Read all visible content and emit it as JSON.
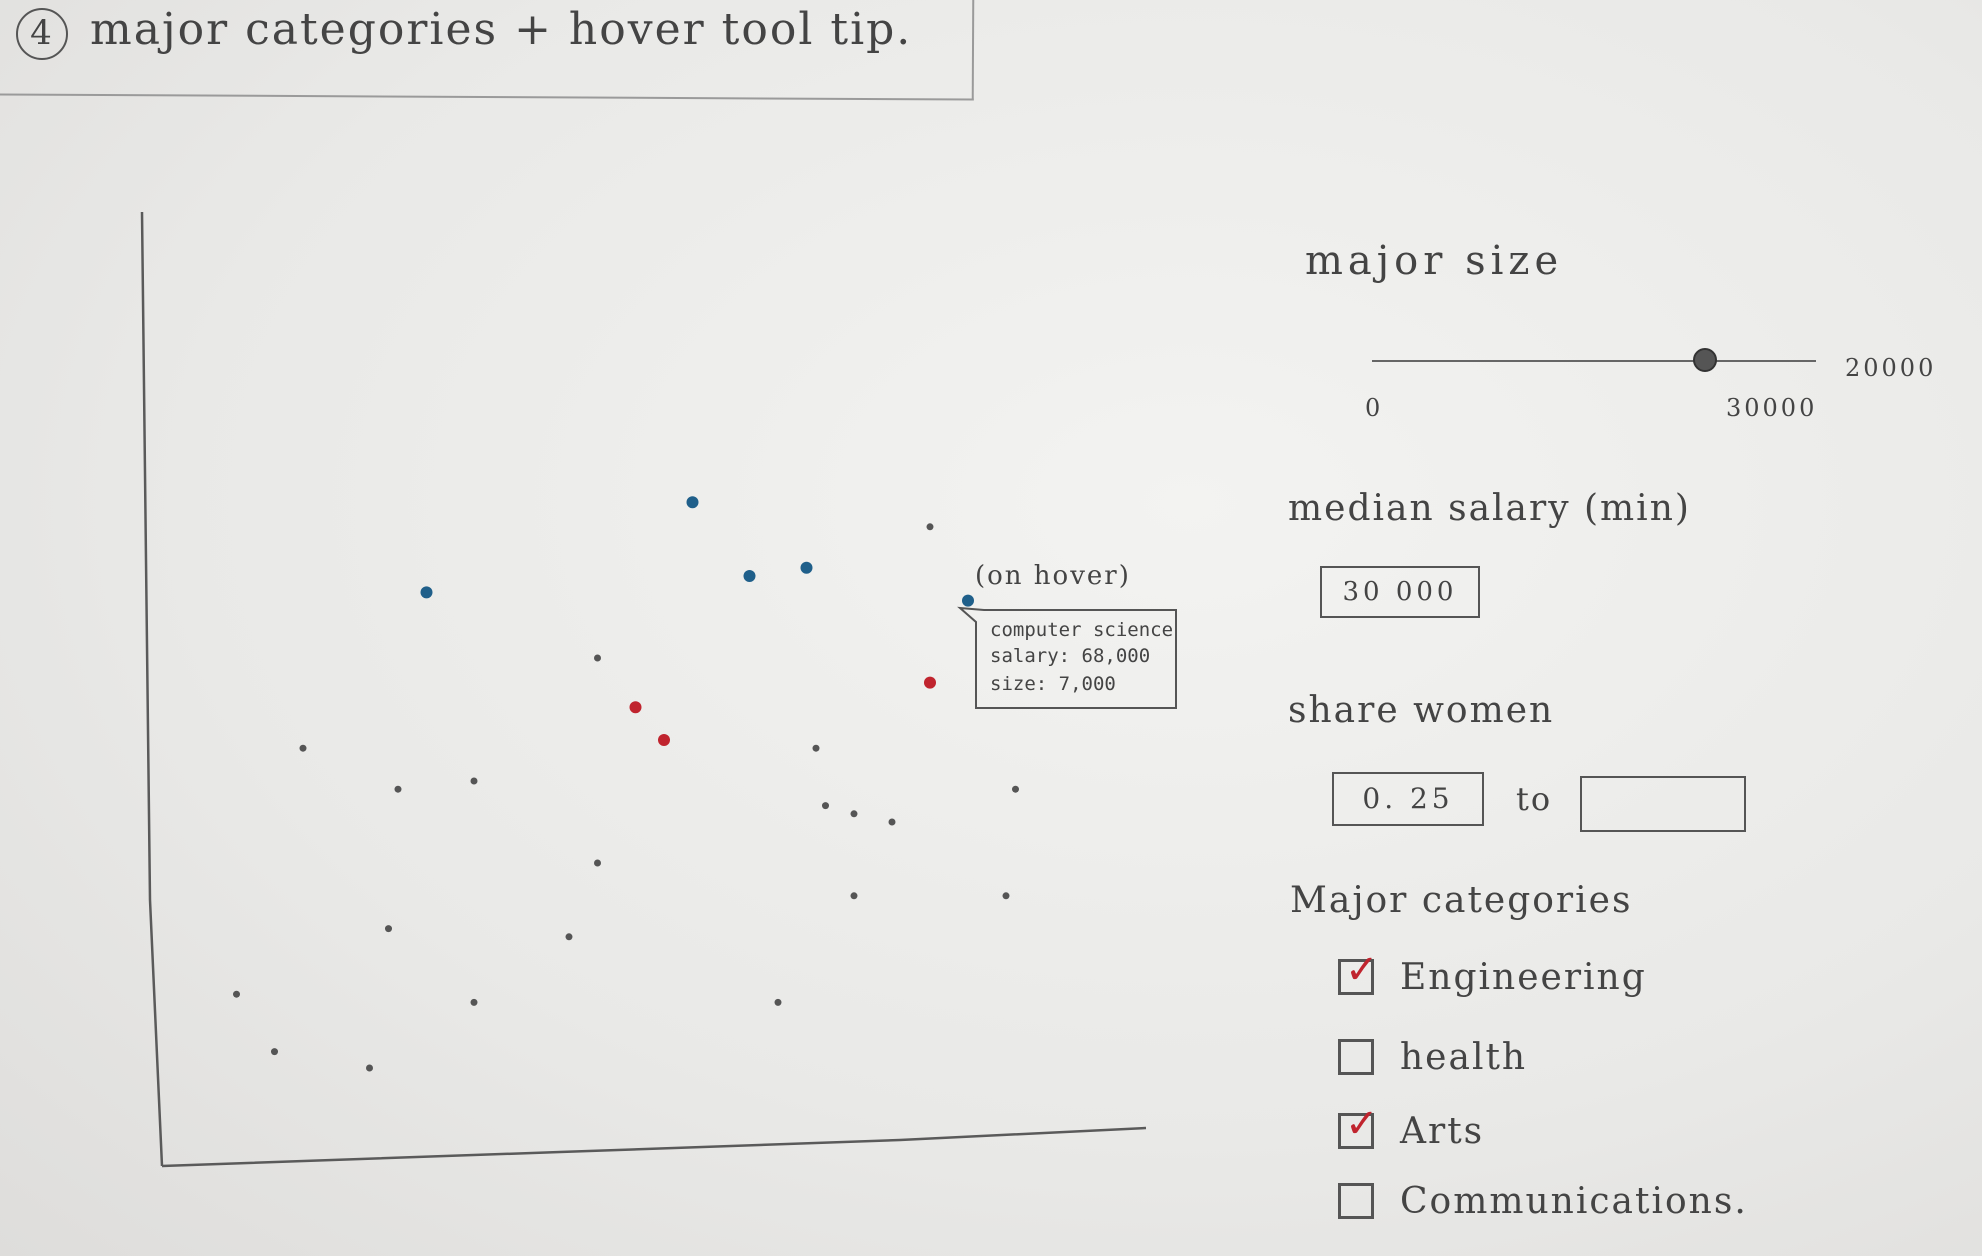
{
  "title": {
    "number": "4",
    "text": "major categories + hover tool tip."
  },
  "colors": {
    "highlight_blue": "#1f5f8a",
    "highlight_red": "#c0242e",
    "point_gray": "#555555",
    "axis": "#5a5a5a"
  },
  "chart_data": {
    "type": "scatter",
    "title": "",
    "xlabel": "",
    "ylabel": "",
    "xlim": [
      0,
      100
    ],
    "ylim": [
      0,
      100
    ],
    "annotation": "(on hover)",
    "tooltip": {
      "lines": [
        "computer science",
        "salary: 68,000",
        "size: 7,000"
      ]
    },
    "series": [
      {
        "name": "blue",
        "color": "#1f5f8a",
        "points": [
          [
            55,
            79
          ],
          [
            27,
            68
          ],
          [
            61,
            70
          ],
          [
            67,
            71
          ],
          [
            84,
            67
          ]
        ]
      },
      {
        "name": "red",
        "color": "#c0242e",
        "points": [
          [
            49,
            54
          ],
          [
            52,
            50
          ],
          [
            80,
            57
          ]
        ]
      },
      {
        "name": "other",
        "color": "#555555",
        "points": [
          [
            80,
            76
          ],
          [
            45,
            60
          ],
          [
            14,
            49
          ],
          [
            24,
            44
          ],
          [
            32,
            45
          ],
          [
            68,
            49
          ],
          [
            69,
            42
          ],
          [
            72,
            41
          ],
          [
            76,
            40
          ],
          [
            89,
            44
          ],
          [
            45,
            35
          ],
          [
            72,
            31
          ],
          [
            88,
            31
          ],
          [
            23,
            27
          ],
          [
            42,
            26
          ],
          [
            7,
            19
          ],
          [
            32,
            18
          ],
          [
            64,
            18
          ],
          [
            11,
            12
          ],
          [
            21,
            10
          ]
        ]
      }
    ]
  },
  "controls": {
    "major_size": {
      "label": "major size",
      "min_label": "0",
      "value_label": "30000",
      "max_label": "20000",
      "fraction": 0.75
    },
    "median_salary": {
      "label": "median salary (min)",
      "value": "30 000"
    },
    "share_women": {
      "label": "share women",
      "from_value": "0. 25",
      "to_label": "to",
      "to_value": ""
    },
    "major_categories": {
      "label": "Major categories",
      "items": [
        {
          "label": "Engineering",
          "checked": true
        },
        {
          "label": "health",
          "checked": false
        },
        {
          "label": "Arts",
          "checked": true
        },
        {
          "label": "Communications.",
          "checked": false
        }
      ]
    }
  }
}
